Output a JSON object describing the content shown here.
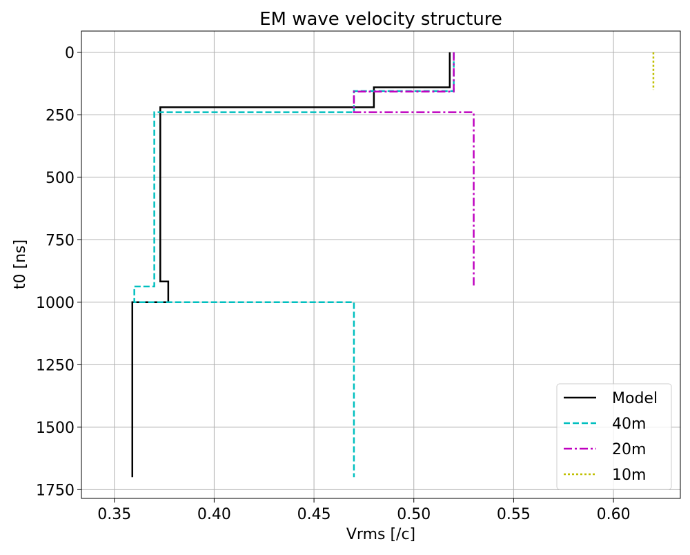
{
  "chart_data": {
    "type": "line",
    "title": "EM wave velocity structure",
    "xlabel": "Vrms [/c]",
    "ylabel": "t0 [ns]",
    "xlim": [
      0.3335,
      0.6335
    ],
    "ylim": [
      1785,
      -85
    ],
    "y_inverted": true,
    "grid": true,
    "legend_position": "bottom-right",
    "x_ticks": [
      0.35,
      0.4,
      0.45,
      0.5,
      0.55,
      0.6
    ],
    "x_tick_labels": [
      "0.35",
      "0.40",
      "0.45",
      "0.50",
      "0.55",
      "0.60"
    ],
    "y_ticks": [
      0,
      250,
      500,
      750,
      1000,
      1250,
      1500,
      1750
    ],
    "y_tick_labels": [
      "0",
      "250",
      "500",
      "750",
      "1000",
      "1250",
      "1500",
      "1750"
    ],
    "series": [
      {
        "name": "Model",
        "color": "#000000",
        "dash": "solid",
        "points": [
          [
            0.518,
            0
          ],
          [
            0.518,
            140
          ],
          [
            0.48,
            140
          ],
          [
            0.48,
            220
          ],
          [
            0.373,
            220
          ],
          [
            0.373,
            917
          ],
          [
            0.377,
            917
          ],
          [
            0.377,
            1000
          ],
          [
            0.359,
            1000
          ],
          [
            0.359,
            1700
          ]
        ]
      },
      {
        "name": "40m",
        "color": "#00bfbf",
        "dash": "dashed",
        "points": [
          [
            0.52,
            0
          ],
          [
            0.52,
            155
          ],
          [
            0.47,
            155
          ],
          [
            0.47,
            240
          ],
          [
            0.37,
            240
          ],
          [
            0.37,
            937
          ],
          [
            0.36,
            937
          ],
          [
            0.36,
            1000
          ],
          [
            0.47,
            1000
          ],
          [
            0.47,
            1700
          ]
        ]
      },
      {
        "name": "20m",
        "color": "#bf00bf",
        "dash": "dashdot",
        "points": [
          [
            0.52,
            0
          ],
          [
            0.52,
            157
          ],
          [
            0.47,
            157
          ],
          [
            0.47,
            240
          ],
          [
            0.53,
            240
          ],
          [
            0.53,
            937
          ]
        ]
      },
      {
        "name": "10m",
        "color": "#bfbf00",
        "dash": "dotted",
        "points": [
          [
            0.62,
            0
          ],
          [
            0.62,
            150
          ]
        ]
      }
    ]
  }
}
